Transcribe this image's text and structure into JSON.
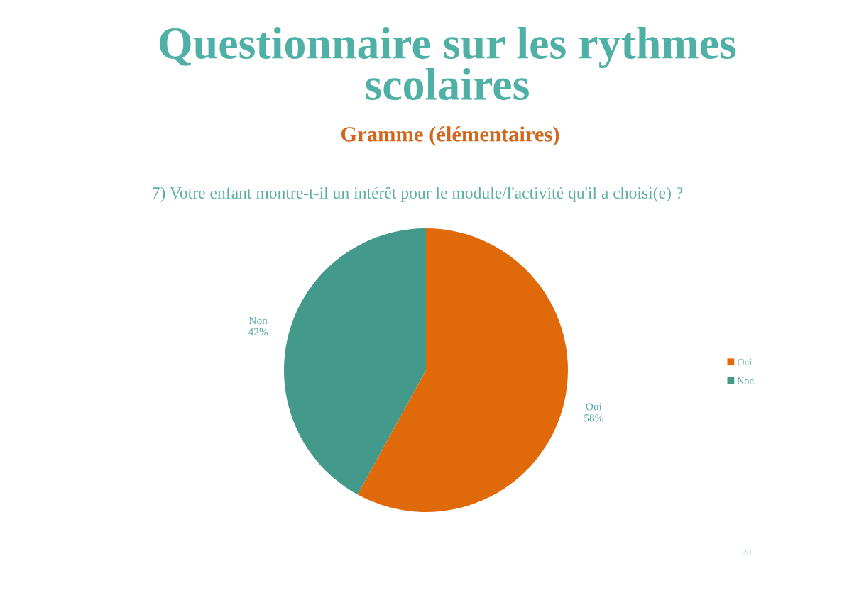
{
  "chart_data": {
    "type": "pie",
    "title": "Questionnaire sur les rythmes scolaires",
    "subtitle": "Gramme (élémentaires)",
    "annotations": [
      "7) Votre enfant montre-t-il un intérêt pour le module/l'activité qu'il a choisi(e) ?",
      "20"
    ],
    "categories": [
      "Oui",
      "Non"
    ],
    "values": [
      58,
      42
    ],
    "value_labels": [
      "58%",
      "42%"
    ],
    "colors": [
      "#e0690a",
      "#43998a"
    ],
    "legend": "right"
  }
}
